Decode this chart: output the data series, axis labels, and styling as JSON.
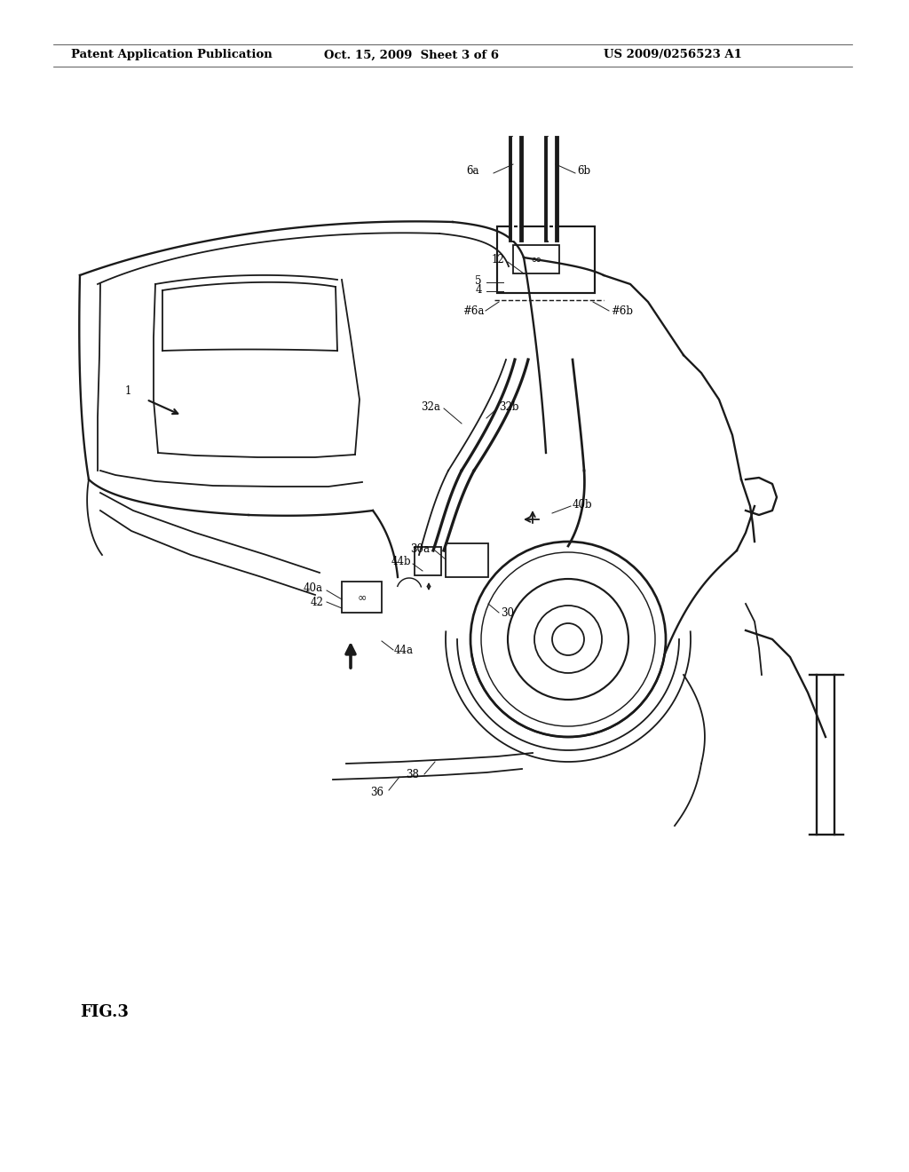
{
  "bg_color": "#ffffff",
  "line_color": "#1a1a1a",
  "lw": 1.3,
  "fig_width": 10.24,
  "fig_height": 13.2,
  "header_text": "Patent Application Publication",
  "header_date": "Oct. 15, 2009  Sheet 3 of 6",
  "header_patent": "US 2009/0256523 A1",
  "fig_label": "FIG.3"
}
